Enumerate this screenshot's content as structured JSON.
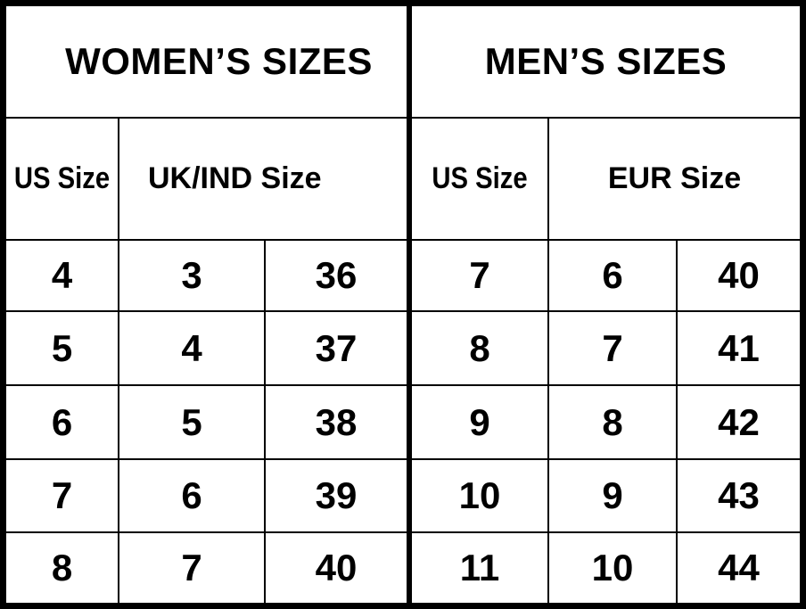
{
  "women": {
    "title": "WOMEN’S SIZES",
    "us_header": "US Size",
    "uk_header": "UK/IND Size",
    "rows": [
      {
        "us": "4",
        "uk": "3",
        "extra": "36"
      },
      {
        "us": "5",
        "uk": "4",
        "extra": "37"
      },
      {
        "us": "6",
        "uk": "5",
        "extra": "38"
      },
      {
        "us": "7",
        "uk": "6",
        "extra": "39"
      },
      {
        "us": "8",
        "uk": "7",
        "extra": "40"
      }
    ]
  },
  "men": {
    "title": "MEN’S SIZES",
    "us_header": "US Size",
    "eur_header": "EUR Size",
    "rows": [
      {
        "us": "7",
        "eur": "6",
        "extra": "40"
      },
      {
        "us": "8",
        "eur": "7",
        "extra": "41"
      },
      {
        "us": "9",
        "eur": "8",
        "extra": "42"
      },
      {
        "us": "10",
        "eur": "9",
        "extra": "43"
      },
      {
        "us": "11",
        "eur": "10",
        "extra": "44"
      }
    ]
  }
}
